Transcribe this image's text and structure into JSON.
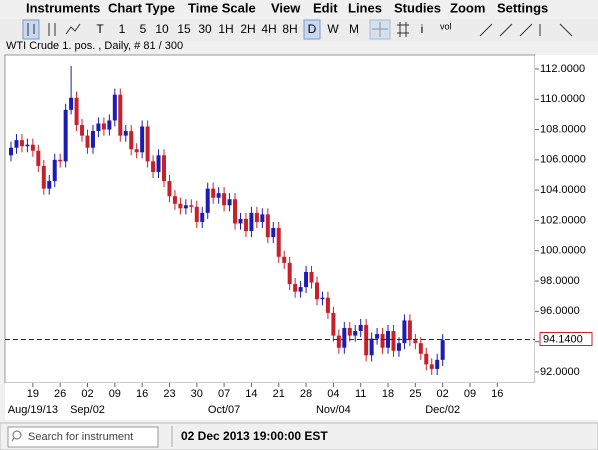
{
  "menu": [
    "Instruments",
    "Chart Type",
    "Time Scale",
    "View",
    "Edit",
    "Lines",
    "Studies",
    "Zoom",
    "Settings"
  ],
  "toolbar": {
    "periods": [
      "T",
      "1",
      "5",
      "10",
      "15",
      "30",
      "1H",
      "2H",
      "4H",
      "8H",
      "D",
      "W",
      "M"
    ],
    "info": "i",
    "volume": "vol"
  },
  "chart_data": {
    "type": "candlestick",
    "title": "WTI Crude 1. pos. , Daily, # 81 / 300",
    "open": [
      106.3,
      106.8,
      107.3,
      106.9,
      107.0,
      106.6,
      105.6,
      104.1,
      104.6,
      106.0,
      105.9,
      109.3,
      110.1,
      108.3,
      107.6,
      106.8,
      107.9,
      108.4,
      108.0,
      108.6,
      110.3,
      107.6,
      107.9,
      106.7,
      106.5,
      108.2,
      105.9,
      105.2,
      106.3,
      104.6,
      103.6,
      103.1,
      102.8,
      103.0,
      102.9,
      101.9,
      102.5,
      104.1,
      103.5,
      103.8,
      103.0,
      103.4,
      101.8,
      102.1,
      101.3,
      102.5,
      101.9,
      102.4,
      100.9,
      101.5,
      99.6,
      99.2,
      97.8,
      97.3,
      97.6,
      98.6,
      97.9,
      96.8,
      96.9,
      95.9,
      94.4,
      93.6,
      94.9,
      94.4,
      94.7,
      95.1,
      93.1,
      94.2,
      94.5,
      93.6,
      94.7,
      93.4,
      93.9,
      95.4,
      94.1,
      93.9,
      93.2,
      92.5,
      92.2,
      92.8
    ],
    "high": [
      107.2,
      107.7,
      107.7,
      107.4,
      107.4,
      107.0,
      106.0,
      105.0,
      106.4,
      106.4,
      109.7,
      112.2,
      110.5,
      108.7,
      108.0,
      108.3,
      108.8,
      108.8,
      109.0,
      110.7,
      110.7,
      108.3,
      108.3,
      107.1,
      108.6,
      108.6,
      106.3,
      106.7,
      106.7,
      105.0,
      104.0,
      103.5,
      103.4,
      103.4,
      103.3,
      102.9,
      104.5,
      104.5,
      104.2,
      104.2,
      103.8,
      103.8,
      102.5,
      102.5,
      102.9,
      102.9,
      102.8,
      102.8,
      101.9,
      101.9,
      100.0,
      99.6,
      98.2,
      98.0,
      99.0,
      99.0,
      98.3,
      97.3,
      97.3,
      96.3,
      94.8,
      95.3,
      95.3,
      95.1,
      95.5,
      95.5,
      94.6,
      94.9,
      94.9,
      95.1,
      95.1,
      94.3,
      95.8,
      95.8,
      94.5,
      94.3,
      93.6,
      92.9,
      93.2,
      94.5
    ],
    "low": [
      105.9,
      106.4,
      106.5,
      106.5,
      106.2,
      105.2,
      103.7,
      103.7,
      104.2,
      105.5,
      105.5,
      109.0,
      107.9,
      107.2,
      106.4,
      106.4,
      107.5,
      107.6,
      107.6,
      108.2,
      107.2,
      107.2,
      106.3,
      106.1,
      106.1,
      105.5,
      104.8,
      104.8,
      104.2,
      103.2,
      102.7,
      102.4,
      102.4,
      102.5,
      101.5,
      101.5,
      102.1,
      103.1,
      103.1,
      102.6,
      102.6,
      101.4,
      101.4,
      100.9,
      100.9,
      101.5,
      101.5,
      100.5,
      100.5,
      99.2,
      98.8,
      97.4,
      96.9,
      96.9,
      97.2,
      97.5,
      96.4,
      96.4,
      95.5,
      94.0,
      93.2,
      93.2,
      94.0,
      94.0,
      94.3,
      92.7,
      92.7,
      93.8,
      93.2,
      93.2,
      93.0,
      93.0,
      93.5,
      93.7,
      93.5,
      92.8,
      92.1,
      91.8,
      91.8,
      92.4
    ],
    "close": [
      106.8,
      107.3,
      106.9,
      107.0,
      106.6,
      105.6,
      104.1,
      104.6,
      106.0,
      105.9,
      109.3,
      110.1,
      108.3,
      107.6,
      106.8,
      107.9,
      108.4,
      108.0,
      108.6,
      110.3,
      107.6,
      107.9,
      106.7,
      106.5,
      108.2,
      105.9,
      105.2,
      106.3,
      104.6,
      103.6,
      103.1,
      102.8,
      103.0,
      102.9,
      101.9,
      102.5,
      104.1,
      103.5,
      103.8,
      103.0,
      103.4,
      101.8,
      102.1,
      101.3,
      102.5,
      101.9,
      102.4,
      100.9,
      101.5,
      99.6,
      99.2,
      97.8,
      97.3,
      97.6,
      98.6,
      97.9,
      96.8,
      96.9,
      95.9,
      94.4,
      93.6,
      94.9,
      94.4,
      94.7,
      95.1,
      93.1,
      94.2,
      94.5,
      93.6,
      94.7,
      93.4,
      93.9,
      95.4,
      94.1,
      93.9,
      93.2,
      92.5,
      92.2,
      92.8,
      94.1
    ],
    "up_color": "#1c1cb0",
    "down_color": "#c8202a",
    "ylim": [
      91.27,
      112.92
    ],
    "yticks": [
      {
        "value": 92,
        "label": "92.0000"
      },
      {
        "value": 94,
        "label": "94.0000"
      },
      {
        "value": 96,
        "label": "96.0000"
      },
      {
        "value": 98,
        "label": "98.0000"
      },
      {
        "value": 100,
        "label": "100.0000"
      },
      {
        "value": 102,
        "label": "102.0000"
      },
      {
        "value": 104,
        "label": "104.0000"
      },
      {
        "value": 106,
        "label": "106.0000"
      },
      {
        "value": 108,
        "label": "108.0000"
      },
      {
        "value": 110,
        "label": "110.0000"
      },
      {
        "value": 112,
        "label": "112.0000"
      }
    ],
    "xlim": [
      -1.1,
      95.9
    ],
    "xticks": [
      {
        "value": 4,
        "label": "19"
      },
      {
        "value": 9,
        "label": "26"
      },
      {
        "value": 14,
        "label": "02"
      },
      {
        "value": 19,
        "label": "09"
      },
      {
        "value": 24,
        "label": "16"
      },
      {
        "value": 29,
        "label": "23"
      },
      {
        "value": 34,
        "label": "30"
      },
      {
        "value": 39,
        "label": "07"
      },
      {
        "value": 44,
        "label": "14"
      },
      {
        "value": 49,
        "label": "21"
      },
      {
        "value": 54,
        "label": "28"
      },
      {
        "value": 59,
        "label": "04"
      },
      {
        "value": 64,
        "label": "11"
      },
      {
        "value": 69,
        "label": "18"
      },
      {
        "value": 74,
        "label": "25"
      },
      {
        "value": 79,
        "label": "02"
      },
      {
        "value": 84,
        "label": "09"
      },
      {
        "value": 89,
        "label": "16"
      }
    ],
    "xticks_major": [
      {
        "value": 4,
        "label": "Aug/19/13"
      },
      {
        "value": 14,
        "label": "Sep/02"
      },
      {
        "value": 39,
        "label": "Oct/07"
      },
      {
        "value": 59,
        "label": "Nov/04"
      },
      {
        "value": 79,
        "label": "Dec/02"
      }
    ],
    "last_price": {
      "value": 94.14,
      "label": "94.1400"
    },
    "last_price_color": "#1c1c9c"
  },
  "search_placeholder": "Search for instrument",
  "status": "02 Dec 2013 19:00:00 EST"
}
